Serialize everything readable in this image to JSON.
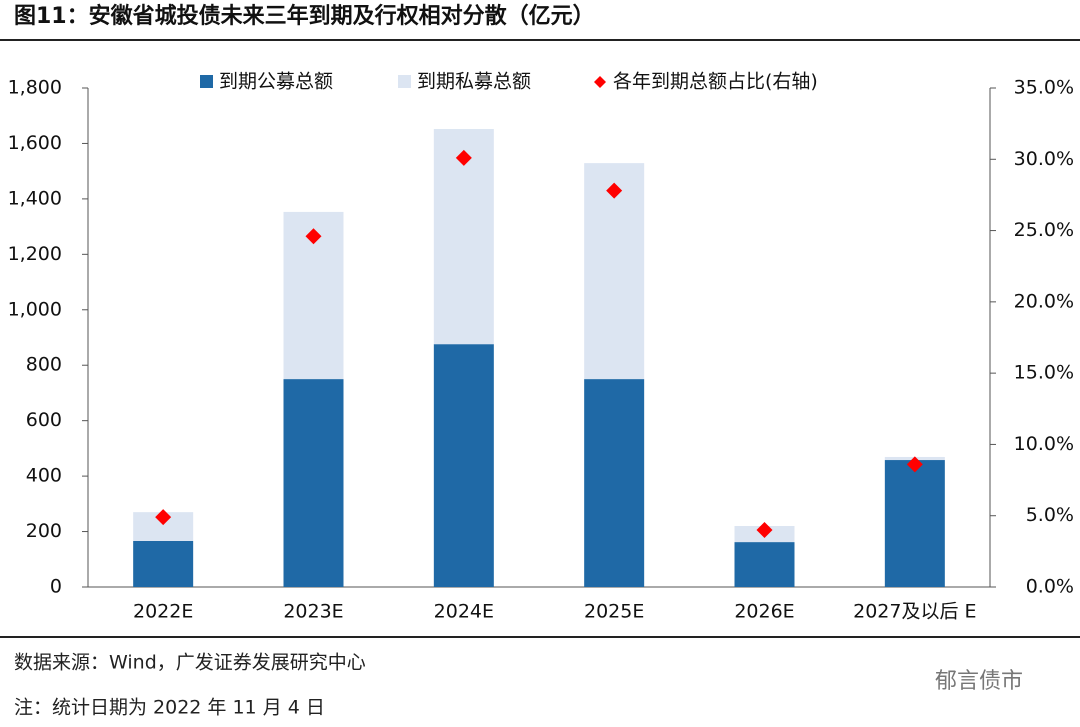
{
  "chart_data": {
    "type": "bar",
    "stacked": true,
    "title": "图11：安徽省城投债未来三年到期及行权相对分散（亿元）",
    "categories": [
      "2022E",
      "2023E",
      "2024E",
      "2025E",
      "2026E",
      "2027及以后 E"
    ],
    "series": [
      {
        "name": "到期公募总额",
        "color": "#1f69a6",
        "values": [
          166,
          750,
          876,
          750,
          162,
          458
        ]
      },
      {
        "name": "到期私募总额",
        "color": "#dce5f2",
        "values": [
          104,
          603,
          776,
          779,
          58,
          11
        ]
      },
      {
        "name": "各年到期总额占比(右轴)",
        "type": "scatter",
        "axis": "y2",
        "color": "#ff0000",
        "values": [
          4.9,
          24.6,
          30.1,
          27.8,
          4.0,
          8.6
        ]
      }
    ],
    "ylim": [
      0,
      1800
    ],
    "yticks": [
      0,
      200,
      400,
      600,
      800,
      {
        "value": 1000,
        "label": "1,000"
      },
      {
        "value": 1200,
        "label": "1,200"
      },
      {
        "value": 1400,
        "label": "1,400"
      },
      {
        "value": 1600,
        "label": "1,600"
      },
      {
        "value": 1800,
        "label": "1,800"
      }
    ],
    "y2lim": [
      0,
      35
    ],
    "y2ticks": [
      {
        "value": 0,
        "label": "0.0%"
      },
      {
        "value": 5,
        "label": "5.0%"
      },
      {
        "value": 10,
        "label": "10.0%"
      },
      {
        "value": 15,
        "label": "15.0%"
      },
      {
        "value": 20,
        "label": "20.0%"
      },
      {
        "value": 25,
        "label": "25.0%"
      },
      {
        "value": 30,
        "label": "30.0%"
      },
      {
        "value": 35,
        "label": "35.0%"
      }
    ],
    "grid": false
  },
  "footer": {
    "source": "数据来源：Wind，广发证券发展研究中心",
    "note": "注：统计日期为 2022 年 11 月 4 日",
    "watermark": "郁言债市"
  }
}
